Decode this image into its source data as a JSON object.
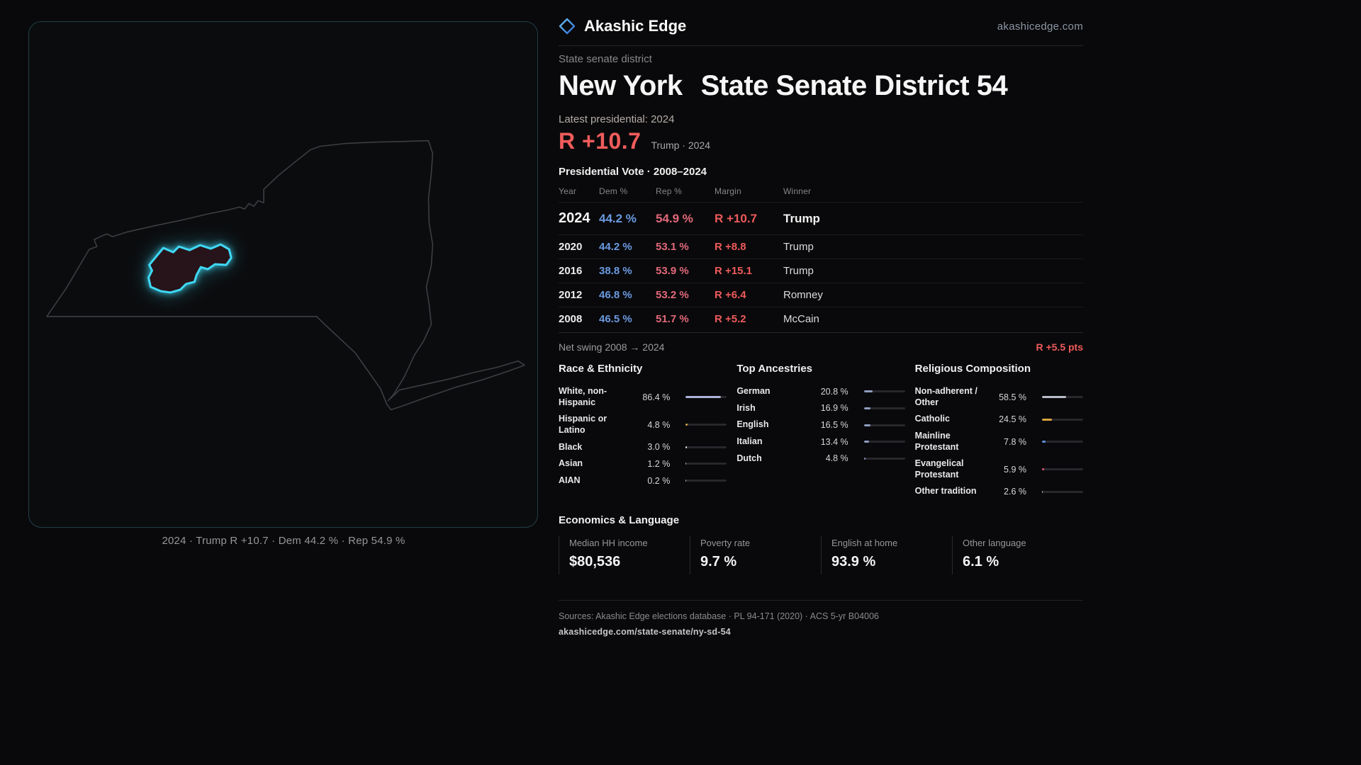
{
  "brand": {
    "name": "Akashic Edge",
    "domain": "akashicedge.com"
  },
  "map": {
    "caption": "2024 · Trump R +10.7 · Dem 44.2 % · Rep 54.9 %"
  },
  "header": {
    "kicker": "State senate district",
    "title_part1": "New York",
    "title_part2": "State Senate District 54"
  },
  "latest": {
    "label": "Latest presidential: 2024",
    "margin": "R +10.7",
    "note": "Trump · 2024"
  },
  "table": {
    "title": "Presidential Vote · 2008–2024",
    "columns": [
      "Year",
      "Dem %",
      "Rep %",
      "Margin",
      "Winner"
    ],
    "rows": [
      {
        "year": "2024",
        "dem": "44.2 %",
        "rep": "54.9 %",
        "margin": "R +10.7",
        "winner": "Trump"
      },
      {
        "year": "2020",
        "dem": "44.2 %",
        "rep": "53.1 %",
        "margin": "R +8.8",
        "winner": "Trump"
      },
      {
        "year": "2016",
        "dem": "38.8 %",
        "rep": "53.9 %",
        "margin": "R +15.1",
        "winner": "Trump"
      },
      {
        "year": "2012",
        "dem": "46.8 %",
        "rep": "53.2 %",
        "margin": "R +6.4",
        "winner": "Romney"
      },
      {
        "year": "2008",
        "dem": "46.5 %",
        "rep": "51.7 %",
        "margin": "R +5.2",
        "winner": "McCain"
      }
    ]
  },
  "swing": {
    "label": "Net swing 2008 → 2024",
    "value": "R +5.5 pts"
  },
  "demographics": [
    {
      "title": "Race & Ethnicity",
      "rows": [
        {
          "label": "White, non-Hispanic",
          "value": "86.4 %",
          "pct": 86.4,
          "color": "#aab3da"
        },
        {
          "label": "Hispanic or Latino",
          "value": "4.8 %",
          "pct": 4.8,
          "color": "#d9a43e"
        },
        {
          "label": "Black",
          "value": "3.0 %",
          "pct": 3.0,
          "color": "#e6e6e6"
        },
        {
          "label": "Asian",
          "value": "1.2 %",
          "pct": 1.2,
          "color": "#b9c0d6"
        },
        {
          "label": "AIAN",
          "value": "0.2 %",
          "pct": 0.2,
          "color": "#c0c0c0"
        }
      ]
    },
    {
      "title": "Top Ancestries",
      "rows": [
        {
          "label": "German",
          "value": "20.8 %",
          "pct": 20.8,
          "color": "#8e9cc0"
        },
        {
          "label": "Irish",
          "value": "16.9 %",
          "pct": 16.9,
          "color": "#8e9cc0"
        },
        {
          "label": "English",
          "value": "16.5 %",
          "pct": 16.5,
          "color": "#8e9cc0"
        },
        {
          "label": "Italian",
          "value": "13.4 %",
          "pct": 13.4,
          "color": "#8e9cc0"
        },
        {
          "label": "Dutch",
          "value": "4.8 %",
          "pct": 4.8,
          "color": "#8e9cc0"
        }
      ]
    },
    {
      "title": "Religious Composition",
      "rows": [
        {
          "label": "Non-adherent / Other",
          "value": "58.5 %",
          "pct": 58.5,
          "color": "#b9bec8"
        },
        {
          "label": "Catholic",
          "value": "24.5 %",
          "pct": 24.5,
          "color": "#d9a43e"
        },
        {
          "label": "Mainline Protestant",
          "value": "7.8 %",
          "pct": 7.8,
          "color": "#5b8fd9"
        },
        {
          "label": "Evangelical Protestant",
          "value": "5.9 %",
          "pct": 5.9,
          "color": "#d95b6e"
        },
        {
          "label": "Other tradition",
          "value": "2.6 %",
          "pct": 2.6,
          "color": "#d8d8d8"
        }
      ]
    }
  ],
  "economics": {
    "title": "Economics & Language",
    "stats": [
      {
        "label": "Median HH income",
        "value": "$80,536"
      },
      {
        "label": "Poverty rate",
        "value": "9.7 %"
      },
      {
        "label": "English at home",
        "value": "93.9 %"
      },
      {
        "label": "Other language",
        "value": "6.1 %"
      }
    ]
  },
  "footer": {
    "sources": "Sources: Akashic Edge elections database · PL 94-171 (2020) · ACS 5-yr B04006",
    "permalink": "akashicedge.com/state-senate/ny-sd-54"
  },
  "colors": {
    "dem_blue": "#6b9ae0",
    "rep_red": "#e2697a",
    "margin_red": "#ef5a5a",
    "accent_cyan": "#3fd9f5"
  }
}
